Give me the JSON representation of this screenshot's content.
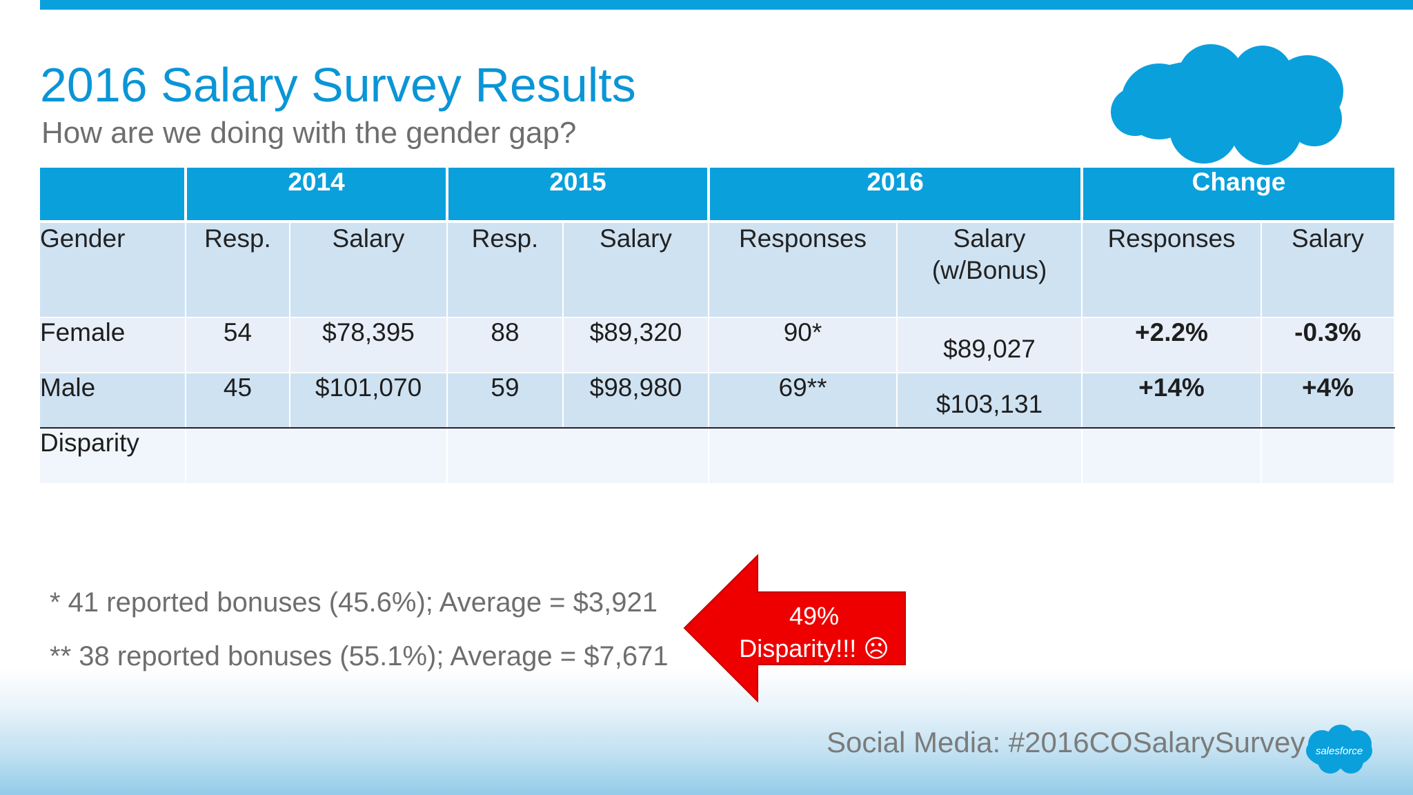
{
  "slide": {
    "title": "2016 Salary Survey Results",
    "subtitle": "How are we doing with the gender gap?"
  },
  "table": {
    "year_headers": [
      "",
      "2014",
      "2015",
      "2016",
      "Change"
    ],
    "sub_headers": [
      "Gender",
      "Resp.",
      "Salary",
      "Resp.",
      "Salary",
      "Responses",
      "Salary\n(w/Bonus)",
      "Responses",
      "Salary"
    ],
    "rows": [
      {
        "gender": "Female",
        "resp_2014": "54",
        "salary_2014": "$78,395",
        "resp_2015": "88",
        "salary_2015": "$89,320",
        "resp_2016": "90*",
        "salary_2016": "$89,027",
        "change_resp": "+2.2%",
        "change_salary": "-0.3%"
      },
      {
        "gender": "Male",
        "resp_2014": "45",
        "salary_2014": "$101,070",
        "resp_2015": "59",
        "salary_2015": "$98,980",
        "resp_2016": "69**",
        "salary_2016": "$103,131",
        "change_resp": "+14%",
        "change_salary": "+4%"
      },
      {
        "gender": "Disparity"
      }
    ]
  },
  "notes": [
    "* 41 reported bonuses (45.6%); Average = $3,921",
    "** 38 reported bonuses (55.1%); Average = $7,671"
  ],
  "callout": {
    "line1": "49%",
    "line2": "Disparity!!! ☹"
  },
  "footer": {
    "social": "Social Media: #2016COSalarySurvey",
    "logo_text": "salesforce"
  },
  "colors": {
    "brand_blue": "#0aa0dc",
    "positive": "#22a84a",
    "negative": "#e3141b",
    "arrow_red": "#ee0000"
  },
  "icons": [
    "cloud-icon",
    "salesforce-logo",
    "left-arrow-callout"
  ]
}
